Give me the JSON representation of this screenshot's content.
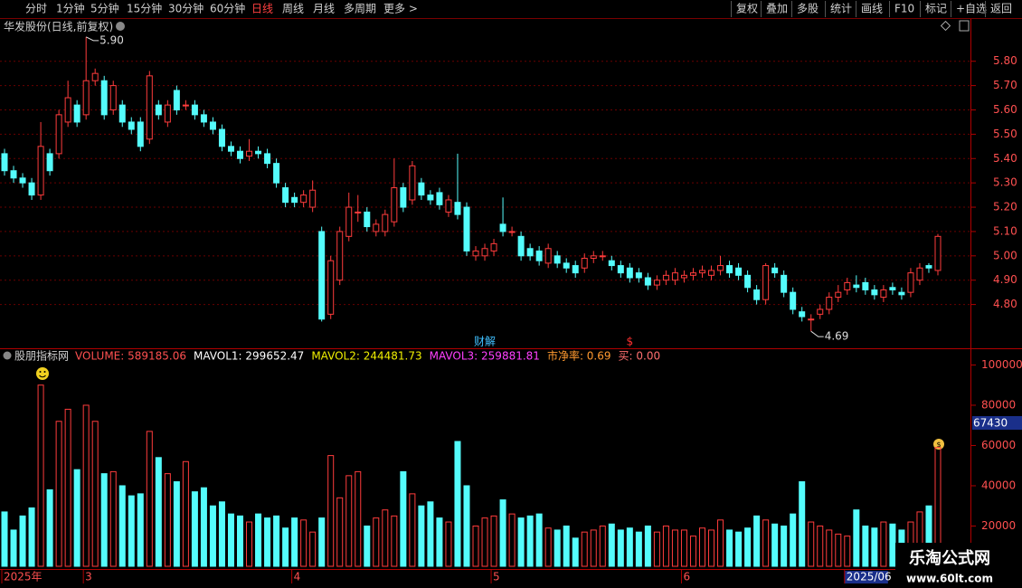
{
  "toolbar": {
    "left": [
      "分时",
      "1分钟",
      "5分钟",
      "15分钟",
      "30分钟",
      "60分钟",
      "日线",
      "周线",
      "月线",
      "多周期",
      "更多 >"
    ],
    "right": [
      "复权",
      "叠加",
      "多股",
      "统计",
      "画线",
      "F10",
      "标记",
      "+自选",
      "返回"
    ]
  },
  "chart_data": [
    {
      "type": "candlestick",
      "title": "华发股份(日线,前复权)",
      "open": [
        5.42,
        5.35,
        5.32,
        5.3,
        5.25,
        5.42,
        5.42,
        5.55,
        5.62,
        5.58,
        5.72,
        5.72,
        5.6,
        5.62,
        5.55,
        5.55,
        5.48,
        5.62,
        5.55,
        5.68,
        5.62,
        5.62,
        5.58,
        5.55,
        5.52,
        5.45,
        5.43,
        5.41,
        5.43,
        5.42,
        5.38,
        5.28,
        5.24,
        5.22,
        5.2,
        5.1,
        4.76,
        4.9,
        5.08,
        5.18,
        5.18,
        5.1,
        5.1,
        5.14,
        5.28,
        5.23,
        5.3,
        5.25,
        5.26,
        5.18,
        5.22,
        5.2,
        5.0,
        5.0,
        5.02,
        5.13,
        5.1,
        5.08,
        5.03,
        5.02,
        4.97,
        5.0,
        4.97,
        4.96,
        4.95,
        4.99,
        5.0,
        4.98,
        4.96,
        4.95,
        4.93,
        4.91,
        4.88,
        4.9,
        4.9,
        4.91,
        4.92,
        4.93,
        4.92,
        4.94,
        4.96,
        4.95,
        4.92,
        4.86,
        4.82,
        4.95,
        4.92,
        4.85,
        4.77,
        4.74,
        4.76,
        4.78,
        4.83,
        4.86,
        4.88,
        4.89,
        4.86,
        4.83,
        4.87,
        4.85,
        4.85,
        4.9,
        4.96,
        4.94
      ],
      "high": [
        5.44,
        5.37,
        5.34,
        5.32,
        5.55,
        5.44,
        5.6,
        5.72,
        5.64,
        5.9,
        5.77,
        5.74,
        5.72,
        5.64,
        5.57,
        5.57,
        5.76,
        5.64,
        5.64,
        5.7,
        5.64,
        5.64,
        5.6,
        5.57,
        5.54,
        5.47,
        5.45,
        5.48,
        5.45,
        5.44,
        5.4,
        5.3,
        5.26,
        5.27,
        5.31,
        5.12,
        5.0,
        5.12,
        5.26,
        5.25,
        5.2,
        5.15,
        5.19,
        5.4,
        5.3,
        5.39,
        5.32,
        5.27,
        5.28,
        5.25,
        5.42,
        5.22,
        5.04,
        5.05,
        5.07,
        5.24,
        5.12,
        5.1,
        5.05,
        5.04,
        5.05,
        5.02,
        4.99,
        4.98,
        5.01,
        5.02,
        5.02,
        5.0,
        4.98,
        4.97,
        4.95,
        4.93,
        4.92,
        4.94,
        4.95,
        4.94,
        4.95,
        4.96,
        4.96,
        5.0,
        4.98,
        4.97,
        4.94,
        4.88,
        4.97,
        4.97,
        4.94,
        4.87,
        4.79,
        4.76,
        4.8,
        4.85,
        4.88,
        4.91,
        4.92,
        4.91,
        4.88,
        4.88,
        4.89,
        4.87,
        4.95,
        4.97,
        4.97,
        5.09
      ],
      "low": [
        5.33,
        5.3,
        5.28,
        5.23,
        5.23,
        5.33,
        5.4,
        5.53,
        5.53,
        5.56,
        5.7,
        5.56,
        5.58,
        5.53,
        5.5,
        5.43,
        5.46,
        5.56,
        5.53,
        5.58,
        5.6,
        5.56,
        5.53,
        5.5,
        5.43,
        5.41,
        5.38,
        5.39,
        5.4,
        5.36,
        5.28,
        5.2,
        5.2,
        5.2,
        5.18,
        4.73,
        4.74,
        4.88,
        5.06,
        5.14,
        5.1,
        5.08,
        5.08,
        5.12,
        5.18,
        5.21,
        5.23,
        5.21,
        5.19,
        5.16,
        5.15,
        5.0,
        4.98,
        4.98,
        5.0,
        5.08,
        5.08,
        4.98,
        4.98,
        4.96,
        4.95,
        4.95,
        4.93,
        4.91,
        4.93,
        4.97,
        4.98,
        4.94,
        4.91,
        4.89,
        4.89,
        4.86,
        4.86,
        4.88,
        4.88,
        4.89,
        4.9,
        4.91,
        4.9,
        4.92,
        4.91,
        4.9,
        4.85,
        4.8,
        4.8,
        4.91,
        4.83,
        4.76,
        4.73,
        4.69,
        4.74,
        4.76,
        4.81,
        4.84,
        4.85,
        4.84,
        4.82,
        4.81,
        4.84,
        4.82,
        4.83,
        4.88,
        4.93,
        4.92
      ],
      "close": [
        5.35,
        5.32,
        5.3,
        5.25,
        5.45,
        5.35,
        5.58,
        5.65,
        5.55,
        5.72,
        5.75,
        5.58,
        5.7,
        5.55,
        5.52,
        5.45,
        5.74,
        5.58,
        5.62,
        5.6,
        5.62,
        5.58,
        5.55,
        5.52,
        5.45,
        5.43,
        5.4,
        5.43,
        5.42,
        5.38,
        5.3,
        5.22,
        5.22,
        5.25,
        5.27,
        4.74,
        4.98,
        5.1,
        5.2,
        5.18,
        5.12,
        5.13,
        5.17,
        5.28,
        5.2,
        5.37,
        5.25,
        5.23,
        5.21,
        5.23,
        5.17,
        5.02,
        5.02,
        5.03,
        5.05,
        5.1,
        5.1,
        5.0,
        5.0,
        4.98,
        5.03,
        4.97,
        4.95,
        4.93,
        4.99,
        5.0,
        5.0,
        4.96,
        4.93,
        4.91,
        4.91,
        4.88,
        4.9,
        4.92,
        4.93,
        4.92,
        4.93,
        4.94,
        4.94,
        4.96,
        4.93,
        4.92,
        4.87,
        4.82,
        4.96,
        4.93,
        4.85,
        4.78,
        4.75,
        4.74,
        4.78,
        4.83,
        4.85,
        4.89,
        4.87,
        4.86,
        4.84,
        4.86,
        4.86,
        4.84,
        4.93,
        4.95,
        4.95,
        5.08
      ],
      "up_color": "#ff3c3c",
      "down_color": "#54fcfc",
      "grid": true,
      "ylim": [
        4.62,
        5.97
      ],
      "yticks": [
        {
          "value": 4.8,
          "label": "4.80"
        },
        {
          "value": 4.9,
          "label": "4.90"
        },
        {
          "value": 5.0,
          "label": "5.00"
        },
        {
          "value": 5.1,
          "label": "5.10"
        },
        {
          "value": 5.2,
          "label": "5.20"
        },
        {
          "value": 5.3,
          "label": "5.30"
        },
        {
          "value": 5.4,
          "label": "5.40"
        },
        {
          "value": 5.5,
          "label": "5.50"
        },
        {
          "value": 5.6,
          "label": "5.60"
        },
        {
          "value": 5.7,
          "label": "5.70"
        },
        {
          "value": 5.8,
          "label": "5.80"
        }
      ],
      "annotations": [
        {
          "index": 9,
          "label": "5.90"
        },
        {
          "index": 89,
          "label": "4.69"
        }
      ],
      "markers": [
        {
          "index": 53,
          "label": "财解"
        },
        {
          "index": 69,
          "label": "$"
        }
      ],
      "x_labels": [
        {
          "index": 0,
          "label": "2025年"
        },
        {
          "index": 9,
          "label": "3"
        },
        {
          "index": 32,
          "label": "4"
        },
        {
          "index": 54,
          "label": "5"
        },
        {
          "index": 75,
          "label": "6"
        },
        {
          "index": 93,
          "label": "2025/06"
        }
      ]
    },
    {
      "type": "bar",
      "indicator": "股朋指标网",
      "legend": [
        {
          "text": "VOLUME: 589185.06",
          "color": "#ff5050"
        },
        {
          "text": "MAVOL1: 299652.47",
          "color": "#ffffff"
        },
        {
          "text": "MAVOL2: 244481.73",
          "color": "#f0f000"
        },
        {
          "text": "MAVOL3: 259881.81",
          "color": "#ff40ff"
        },
        {
          "text": "市净率: 0.69",
          "color": "#ff9a30"
        },
        {
          "text": "买: 0.00",
          "color": "#ff7070"
        }
      ],
      "values": [
        27000,
        18000,
        25000,
        29000,
        90000,
        38000,
        72000,
        78000,
        48000,
        80000,
        72000,
        46000,
        47000,
        40000,
        35000,
        36000,
        67000,
        54000,
        46000,
        42000,
        52000,
        37000,
        39000,
        30000,
        32000,
        26000,
        25000,
        22000,
        26000,
        24000,
        25000,
        19000,
        24000,
        23000,
        17000,
        24000,
        55000,
        34000,
        45000,
        47000,
        20000,
        24000,
        28000,
        25000,
        47000,
        36000,
        30000,
        32000,
        24000,
        22000,
        62000,
        40000,
        20000,
        24000,
        25000,
        33000,
        26000,
        24000,
        25000,
        26000,
        19000,
        18000,
        20000,
        14000,
        17000,
        18000,
        20000,
        21000,
        18000,
        19000,
        17000,
        20000,
        17000,
        20000,
        18000,
        18000,
        15000,
        19000,
        18000,
        23000,
        18000,
        17000,
        19000,
        25000,
        23000,
        21000,
        20000,
        26000,
        42000,
        22000,
        20000,
        18000,
        16000,
        15000,
        28000,
        20000,
        19000,
        22000,
        21000,
        18000,
        22000,
        27000,
        30000,
        59000
      ],
      "ylim": [
        0,
        102000
      ],
      "yticks": [
        20000,
        40000,
        60000,
        80000,
        100000
      ],
      "cursor_label": "67430"
    }
  ],
  "watermark": {
    "name": "乐淘公式网",
    "url": "www.60lt.com"
  }
}
